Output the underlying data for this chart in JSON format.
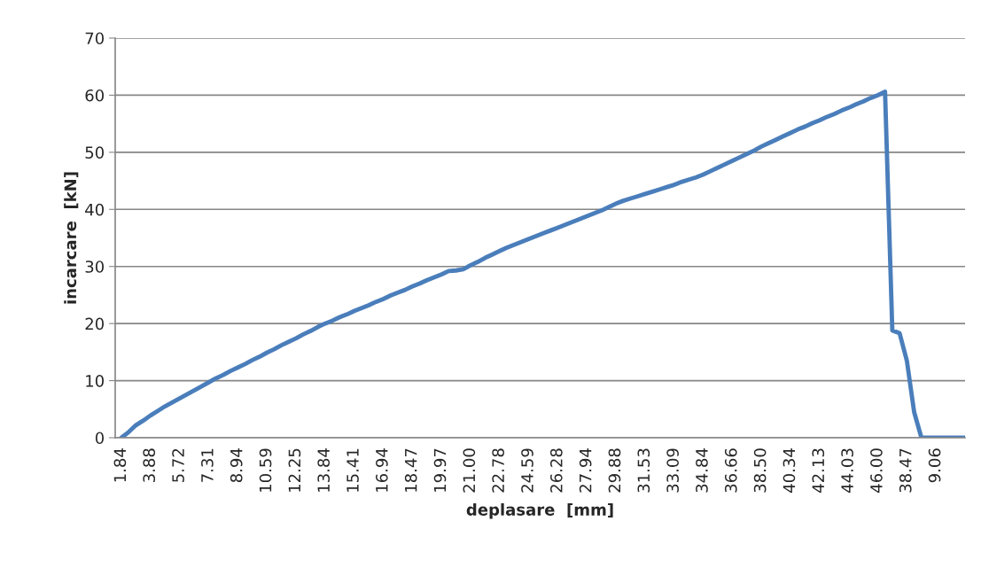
{
  "chart_data": {
    "type": "line",
    "xlabel": "deplasare  [mm]",
    "ylabel": "incarcare  [kN]",
    "categories": [
      "1.84",
      null,
      null,
      null,
      "3.88",
      null,
      null,
      null,
      "5.72",
      null,
      null,
      null,
      "7.31",
      null,
      null,
      null,
      "8.94",
      null,
      null,
      null,
      "10.59",
      null,
      null,
      null,
      "12.25",
      null,
      null,
      null,
      "13.84",
      null,
      null,
      null,
      "15.41",
      null,
      null,
      null,
      "16.94",
      null,
      null,
      null,
      "18.47",
      null,
      null,
      null,
      "19.97",
      null,
      null,
      null,
      "21.00",
      null,
      null,
      null,
      "22.78",
      null,
      null,
      null,
      "24.59",
      null,
      null,
      null,
      "26.28",
      null,
      null,
      null,
      "27.94",
      null,
      null,
      null,
      "29.88",
      null,
      null,
      null,
      "31.53",
      null,
      null,
      null,
      "33.09",
      null,
      null,
      null,
      "34.84",
      null,
      null,
      null,
      "36.66",
      null,
      null,
      null,
      "38.50",
      null,
      null,
      null,
      "40.34",
      null,
      null,
      null,
      "42.13",
      null,
      null,
      null,
      "44.03",
      null,
      null,
      null,
      "46.00",
      null,
      null,
      null,
      "38.47",
      null,
      null,
      null,
      "9.06",
      null,
      null,
      null,
      null
    ],
    "series": [
      {
        "color": "#4a7ebb",
        "values": [
          0,
          1.0,
          2.2,
          3.0,
          3.9,
          4.7,
          5.5,
          6.2,
          6.9,
          7.6,
          8.3,
          9.0,
          9.7,
          10.4,
          11.0,
          11.7,
          12.3,
          12.9,
          13.6,
          14.2,
          14.9,
          15.5,
          16.2,
          16.8,
          17.4,
          18.1,
          18.7,
          19.4,
          20.0,
          20.5,
          21.1,
          21.6,
          22.2,
          22.7,
          23.2,
          23.8,
          24.3,
          24.9,
          25.4,
          25.9,
          26.5,
          27.0,
          27.6,
          28.1,
          28.6,
          29.2,
          29.3,
          29.5,
          30.2,
          30.8,
          31.5,
          32.1,
          32.7,
          33.3,
          33.8,
          34.3,
          34.8,
          35.3,
          35.8,
          36.3,
          36.8,
          37.3,
          37.8,
          38.3,
          38.8,
          39.3,
          39.8,
          40.4,
          41.0,
          41.5,
          41.9,
          42.3,
          42.7,
          43.1,
          43.5,
          43.9,
          44.3,
          44.8,
          45.2,
          45.6,
          46.1,
          46.7,
          47.3,
          47.9,
          48.5,
          49.1,
          49.7,
          50.3,
          51.0,
          51.6,
          52.2,
          52.8,
          53.4,
          54.0,
          54.5,
          55.1,
          55.6,
          56.2,
          56.7,
          57.3,
          57.8,
          58.4,
          58.9,
          59.5,
          60.0,
          60.6,
          18.8,
          18.3,
          13.5,
          4.5,
          0,
          0,
          0,
          0,
          0,
          0,
          0
        ]
      }
    ],
    "ylim": [
      0,
      70
    ],
    "yticks": [
      0,
      10,
      20,
      30,
      40,
      50,
      60,
      70
    ],
    "grid": "y",
    "marker": "none",
    "line_style": "solid"
  }
}
